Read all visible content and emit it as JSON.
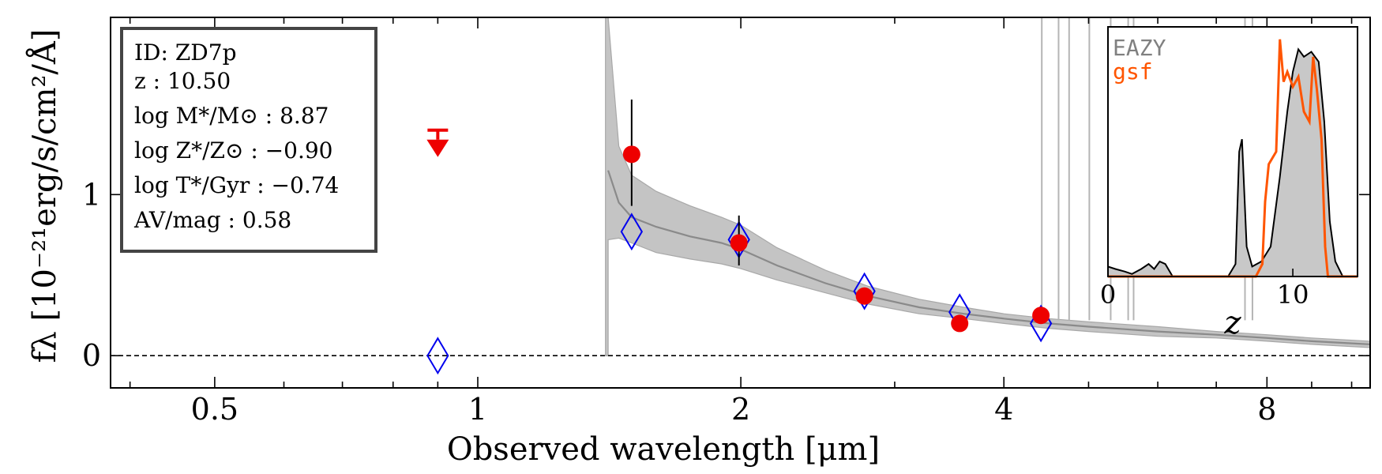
{
  "chart_data": {
    "type": "scatter",
    "object_id_label": "ID: ZD7p",
    "info_lines": [
      "ID: ZD7p",
      "z : 10.50",
      "log M*/M⊙ : 8.87",
      "log Z*/Z⊙ : −0.90",
      "log T*/Gyr : −0.74",
      "AV/mag : 0.58"
    ],
    "xlabel": "Observed wavelength [μm]",
    "ylabel": "fλ [10⁻²¹erg/s/cm²/Å]",
    "xscale": "log",
    "xlim": [
      0.38,
      10.5
    ],
    "ylim": [
      -0.2,
      2.1
    ],
    "xticks": [
      {
        "value": 0.5,
        "label": "0.5"
      },
      {
        "value": 1,
        "label": "1"
      },
      {
        "value": 2,
        "label": "2"
      },
      {
        "value": 4,
        "label": "4"
      },
      {
        "value": 8,
        "label": "8"
      }
    ],
    "yticks": [
      {
        "value": 0,
        "label": "0"
      },
      {
        "value": 1,
        "label": "1"
      }
    ],
    "observed_photometry": {
      "name": "Observed",
      "color": "#ee0000",
      "points": [
        {
          "x": 1.5,
          "y": 1.25,
          "err_lo": 0.32,
          "err_hi": 0.34
        },
        {
          "x": 1.99,
          "y": 0.7,
          "err_lo": 0.14,
          "err_hi": 0.17
        },
        {
          "x": 2.77,
          "y": 0.37,
          "err_lo": 0.04,
          "err_hi": 0.04
        },
        {
          "x": 3.56,
          "y": 0.2,
          "err_lo": 0.03,
          "err_hi": 0.03
        },
        {
          "x": 4.41,
          "y": 0.25,
          "err_lo": 0.03,
          "err_hi": 0.03
        }
      ]
    },
    "upper_limits": [
      {
        "x": 0.9,
        "y": 1.4,
        "color": "#ee0000"
      }
    ],
    "model_photometry": {
      "name": "Model",
      "color": "#0000ee",
      "points": [
        {
          "x": 0.9,
          "y": 0.0
        },
        {
          "x": 1.5,
          "y": 0.77
        },
        {
          "x": 1.99,
          "y": 0.72
        },
        {
          "x": 2.77,
          "y": 0.4
        },
        {
          "x": 3.56,
          "y": 0.27
        },
        {
          "x": 4.41,
          "y": 0.2
        }
      ]
    },
    "model_spectrum": {
      "name": "SED model",
      "color": "#8a8a8a",
      "break_um": 1.4,
      "x": [
        1.41,
        1.45,
        1.5,
        1.6,
        1.75,
        1.9,
        2.0,
        2.2,
        2.5,
        2.8,
        3.2,
        3.6,
        4.0,
        4.5,
        5.0,
        6.0,
        7.0,
        8.0,
        9.0,
        10.5
      ],
      "median": [
        1.15,
        0.95,
        0.86,
        0.8,
        0.74,
        0.7,
        0.66,
        0.56,
        0.45,
        0.37,
        0.3,
        0.26,
        0.23,
        0.2,
        0.18,
        0.15,
        0.13,
        0.11,
        0.09,
        0.07
      ],
      "upper": [
        2.1,
        1.3,
        1.12,
        1.02,
        0.93,
        0.86,
        0.81,
        0.67,
        0.53,
        0.43,
        0.35,
        0.3,
        0.26,
        0.23,
        0.21,
        0.18,
        0.15,
        0.13,
        0.11,
        0.09
      ],
      "lower": [
        0.72,
        0.73,
        0.7,
        0.64,
        0.6,
        0.57,
        0.54,
        0.47,
        0.39,
        0.32,
        0.26,
        0.23,
        0.2,
        0.17,
        0.15,
        0.12,
        0.11,
        0.09,
        0.07,
        0.05
      ],
      "emission_lines_um": [
        4.42,
        4.62,
        4.75,
        5.01,
        5.3,
        5.55,
        5.63,
        7.55,
        7.7
      ]
    },
    "zero_line": 0,
    "inset": {
      "xlabel": "z",
      "xlim": [
        0,
        13.5
      ],
      "ylim": [
        0,
        1.0
      ],
      "xticks": [
        {
          "value": 0,
          "label": "0"
        },
        {
          "value": 10,
          "label": "10"
        }
      ],
      "series": [
        {
          "name": "EAZY",
          "color": "#808080",
          "filled": true,
          "x": [
            0,
            0.4,
            0.9,
            1.3,
            1.8,
            2.2,
            2.5,
            2.8,
            3.1,
            3.5,
            4.5,
            5.5,
            6.5,
            6.9,
            7.1,
            7.25,
            7.5,
            7.8,
            8.3,
            8.8,
            9.3,
            9.7,
            10.0,
            10.3,
            10.6,
            11.0,
            11.4,
            11.7,
            12.0,
            12.3,
            12.7,
            13.5
          ],
          "y": [
            0.04,
            0.03,
            0.02,
            0.01,
            0.03,
            0.05,
            0.03,
            0.06,
            0.05,
            0.0,
            0.0,
            0.0,
            0.0,
            0.05,
            0.5,
            0.55,
            0.12,
            0.04,
            0.06,
            0.12,
            0.4,
            0.66,
            0.82,
            0.91,
            0.88,
            0.9,
            0.86,
            0.62,
            0.22,
            0.06,
            0.0,
            0.0
          ]
        },
        {
          "name": "gsf",
          "color": "#ff5500",
          "filled": false,
          "x": [
            0,
            7.6,
            8.0,
            8.35,
            8.5,
            8.7,
            9.1,
            9.3,
            9.5,
            9.7,
            10.0,
            10.3,
            10.6,
            10.9,
            11.1,
            11.3,
            11.55,
            11.75,
            11.9,
            12.1,
            13.5
          ],
          "y": [
            0,
            0,
            0,
            0.05,
            0.3,
            0.45,
            0.5,
            0.95,
            0.78,
            0.82,
            0.76,
            0.8,
            0.66,
            0.62,
            0.88,
            0.75,
            0.55,
            0.12,
            0.0,
            0.0,
            0.0
          ]
        }
      ]
    }
  }
}
